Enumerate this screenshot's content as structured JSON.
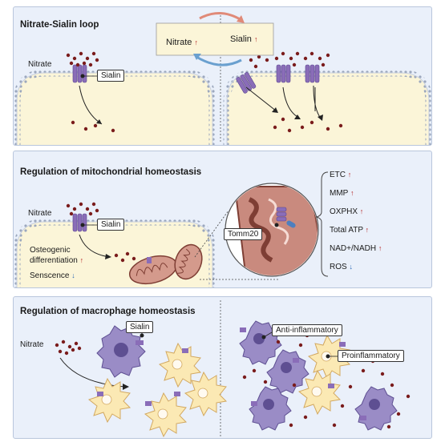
{
  "panel1": {
    "title": "Nitrate-Sialin loop",
    "loop": {
      "left": "Nitrate",
      "right": "Sialin"
    },
    "nitrate_label": "Nitrate",
    "sialin_label": "Sialin"
  },
  "panel2": {
    "title": "Regulation of mitochondrial homeostasis",
    "nitrate_label": "Nitrate",
    "sialin_label": "Sialin",
    "osteogenic": "Osteogenic",
    "differentiation": "differentiation",
    "senescence": "Senscence",
    "tomm20": "Tomm20",
    "effects": [
      {
        "label": "ETC",
        "dir": "up"
      },
      {
        "label": "MMP",
        "dir": "up"
      },
      {
        "label": "OXPHX",
        "dir": "up"
      },
      {
        "label": "Total ATP",
        "dir": "up"
      },
      {
        "label": "NAD+/NADH",
        "dir": "up"
      },
      {
        "label": "ROS",
        "dir": "down"
      }
    ]
  },
  "panel3": {
    "title": "Regulation of macrophage homeostasis",
    "nitrate_label": "Nitrate",
    "sialin_label": "Sialin",
    "anti": "Anti-inflammatory",
    "pro": "Proinflammatory"
  },
  "colors": {
    "panel_bg": "#eaf0fa",
    "cell_fill": "#fbf5d8",
    "membrane": "#9ba7bd",
    "sialin": "#8a6db8",
    "nitrate_dot": "#7a1c1c",
    "mito": "#c98a7e",
    "m1_cell": "#9a8cc6",
    "m2_cell": "#fbe9b4",
    "up_arrow": "#b32020",
    "down_arrow": "#2b68b5"
  }
}
